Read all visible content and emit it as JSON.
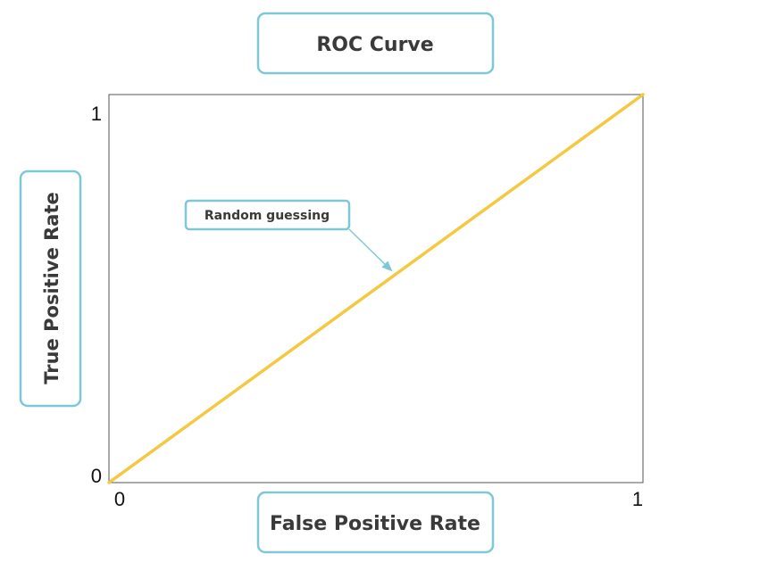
{
  "chart_data": {
    "type": "line",
    "title": "ROC Curve",
    "xlabel": "False Positive Rate",
    "ylabel": "True Positive Rate",
    "xlim": [
      0,
      1
    ],
    "ylim": [
      0,
      1
    ],
    "x_ticks": [
      "0",
      "1"
    ],
    "y_ticks": [
      "0",
      "1"
    ],
    "grid": false,
    "series": [
      {
        "name": "Random guessing",
        "x": [
          0,
          1
        ],
        "y": [
          0,
          1
        ],
        "color": "#f5c842"
      }
    ],
    "annotations": [
      {
        "text": "Random guessing",
        "points_to": [
          0.53,
          0.53
        ]
      }
    ]
  },
  "colors": {
    "box_border": "#7cc8d6",
    "arrow": "#7cc8d6",
    "line": "#f5c842",
    "axis": "#555555",
    "text": "#3a3a3a"
  }
}
